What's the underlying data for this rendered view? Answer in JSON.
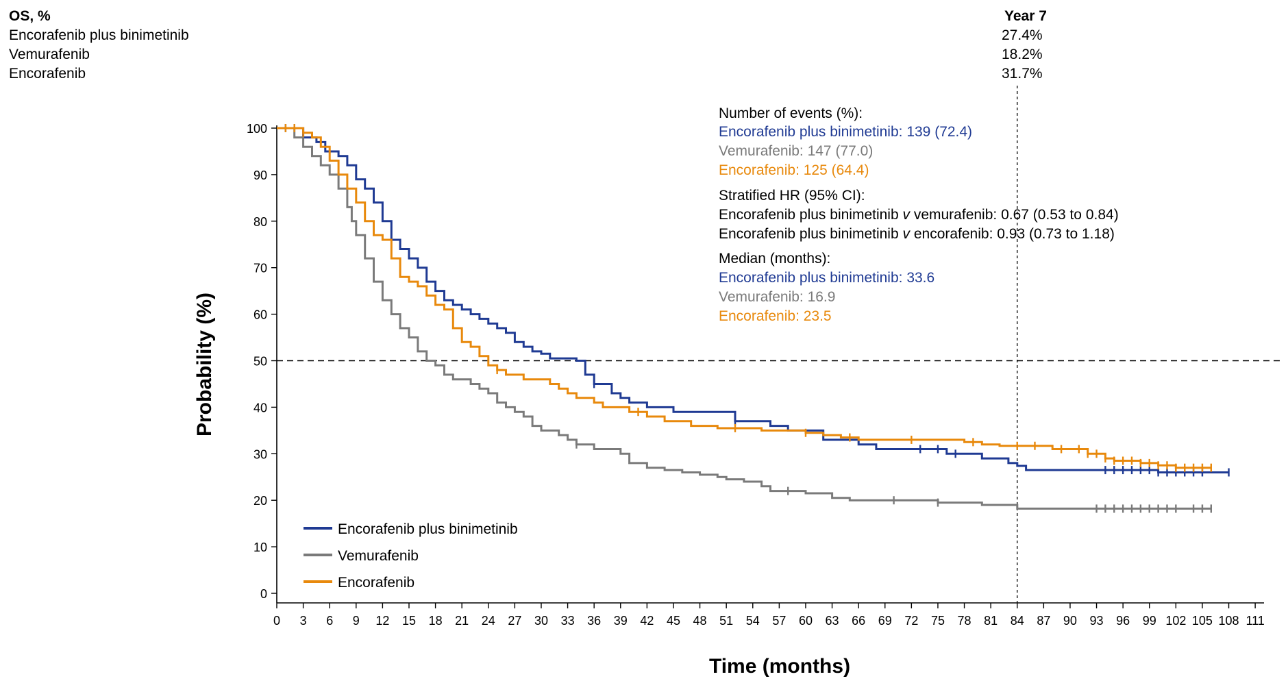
{
  "table": {
    "header_left": "OS, %",
    "header_right": "Year 7",
    "rows": [
      {
        "label": "Encorafenib plus binimetinib",
        "value": "27.4%"
      },
      {
        "label": "Vemurafenib",
        "value": "18.2%"
      },
      {
        "label": "Encorafenib",
        "value": "31.7%"
      }
    ]
  },
  "annotations": {
    "events_title": "Number of events (%):",
    "events": [
      {
        "text": "Encorafenib plus binimetinib: 139 (72.4)",
        "color": "#1f3a93"
      },
      {
        "text": "Vemurafenib: 147 (77.0)",
        "color": "#7a7a7a"
      },
      {
        "text": "Encorafenib: 125 (64.4)",
        "color": "#e8890c"
      }
    ],
    "hr_title": "Stratified HR (95% CI):",
    "hr": [
      {
        "pre": "Encorafenib plus binimetinib ",
        "v": "v",
        "post": " vemurafenib: 0.67 (0.53 to 0.84)"
      },
      {
        "pre": "Encorafenib plus binimetinib ",
        "v": "v",
        "post": " encorafenib: 0.93 (0.73 to 1.18)"
      }
    ],
    "median_title": "Median (months):",
    "medians": [
      {
        "text": "Encorafenib plus binimetinib: 33.6",
        "color": "#1f3a93"
      },
      {
        "text": "Vemurafenib: 16.9",
        "color": "#7a7a7a"
      },
      {
        "text": "Encorafenib: 23.5",
        "color": "#e8890c"
      }
    ]
  },
  "chart_data": {
    "type": "line",
    "subtype": "kaplan-meier step",
    "xlabel": "Time (months)",
    "ylabel": "Probability (%)",
    "xlim": [
      0,
      112
    ],
    "ylim": [
      0,
      100
    ],
    "xticks": [
      0,
      3,
      6,
      9,
      12,
      15,
      18,
      21,
      24,
      27,
      30,
      33,
      36,
      39,
      42,
      45,
      48,
      51,
      54,
      57,
      60,
      63,
      66,
      69,
      72,
      75,
      78,
      81,
      84,
      87,
      90,
      93,
      96,
      99,
      102,
      105,
      108,
      111
    ],
    "yticks": [
      0,
      10,
      20,
      30,
      40,
      50,
      60,
      70,
      80,
      90,
      100
    ],
    "reference_lines": {
      "horizontal_y": 50,
      "vertical_x": 84
    },
    "legend_position": "bottom-left",
    "series": [
      {
        "name": "Encorafenib plus binimetinib",
        "color": "#1f3a93",
        "points": [
          [
            0,
            100
          ],
          [
            3,
            98
          ],
          [
            4.5,
            97
          ],
          [
            5.5,
            95
          ],
          [
            7,
            94
          ],
          [
            8,
            92
          ],
          [
            9,
            89
          ],
          [
            10,
            87
          ],
          [
            11,
            84
          ],
          [
            12,
            80
          ],
          [
            13,
            76
          ],
          [
            14,
            74
          ],
          [
            15,
            72
          ],
          [
            16,
            70
          ],
          [
            17,
            67
          ],
          [
            18,
            65
          ],
          [
            19,
            63
          ],
          [
            20,
            62
          ],
          [
            21,
            61
          ],
          [
            22,
            60
          ],
          [
            23,
            59
          ],
          [
            24,
            58
          ],
          [
            25,
            57
          ],
          [
            26,
            56
          ],
          [
            27,
            54
          ],
          [
            28,
            53
          ],
          [
            29,
            52
          ],
          [
            30,
            51.5
          ],
          [
            31,
            50.5
          ],
          [
            34,
            50
          ],
          [
            35,
            47
          ],
          [
            36,
            45
          ],
          [
            38,
            43
          ],
          [
            39,
            42
          ],
          [
            40,
            41
          ],
          [
            42,
            40
          ],
          [
            45,
            39
          ],
          [
            48,
            39
          ],
          [
            52,
            37
          ],
          [
            56,
            36
          ],
          [
            58,
            35
          ],
          [
            62,
            33
          ],
          [
            66,
            32
          ],
          [
            68,
            31
          ],
          [
            74,
            31
          ],
          [
            76,
            30
          ],
          [
            80,
            29
          ],
          [
            83,
            28
          ],
          [
            84,
            27.4
          ],
          [
            85,
            26.5
          ],
          [
            100,
            26
          ],
          [
            108,
            26
          ]
        ],
        "censor_x": [
          1,
          2,
          36,
          52,
          73,
          75,
          77,
          94,
          95,
          96,
          97,
          98,
          99,
          100,
          101,
          102,
          103,
          104,
          105,
          108
        ]
      },
      {
        "name": "Vemurafenib",
        "color": "#7a7a7a",
        "points": [
          [
            0,
            100
          ],
          [
            2,
            98
          ],
          [
            3,
            96
          ],
          [
            4,
            94
          ],
          [
            5,
            92
          ],
          [
            6,
            90
          ],
          [
            7,
            87
          ],
          [
            8,
            83
          ],
          [
            8.5,
            80
          ],
          [
            9,
            77
          ],
          [
            10,
            72
          ],
          [
            11,
            67
          ],
          [
            12,
            63
          ],
          [
            13,
            60
          ],
          [
            14,
            57
          ],
          [
            15,
            55
          ],
          [
            16,
            52
          ],
          [
            17,
            50
          ],
          [
            18,
            49
          ],
          [
            19,
            47
          ],
          [
            20,
            46
          ],
          [
            22,
            45
          ],
          [
            23,
            44
          ],
          [
            24,
            43
          ],
          [
            25,
            41
          ],
          [
            26,
            40
          ],
          [
            27,
            39
          ],
          [
            28,
            38
          ],
          [
            29,
            36
          ],
          [
            30,
            35
          ],
          [
            32,
            34
          ],
          [
            33,
            33
          ],
          [
            34,
            32
          ],
          [
            36,
            31
          ],
          [
            39,
            30
          ],
          [
            40,
            28
          ],
          [
            42,
            27
          ],
          [
            44,
            26.5
          ],
          [
            46,
            26
          ],
          [
            48,
            25.5
          ],
          [
            50,
            25
          ],
          [
            51,
            24.5
          ],
          [
            53,
            24
          ],
          [
            55,
            23
          ],
          [
            56,
            22
          ],
          [
            60,
            21.5
          ],
          [
            63,
            20.5
          ],
          [
            65,
            20
          ],
          [
            70,
            20
          ],
          [
            75,
            19.5
          ],
          [
            80,
            19
          ],
          [
            84,
            18.2
          ],
          [
            106,
            18.2
          ]
        ],
        "censor_x": [
          34,
          58,
          70,
          75,
          93,
          94,
          95,
          96,
          97,
          98,
          99,
          100,
          101,
          102,
          104,
          105,
          106
        ]
      },
      {
        "name": "Encorafenib",
        "color": "#e8890c",
        "points": [
          [
            0,
            100
          ],
          [
            3,
            99
          ],
          [
            4,
            98
          ],
          [
            5,
            96
          ],
          [
            6,
            93
          ],
          [
            7,
            90
          ],
          [
            8,
            87
          ],
          [
            9,
            84
          ],
          [
            10,
            80
          ],
          [
            11,
            77
          ],
          [
            12,
            76
          ],
          [
            13,
            72
          ],
          [
            14,
            68
          ],
          [
            15,
            67
          ],
          [
            16,
            66
          ],
          [
            17,
            64
          ],
          [
            18,
            62
          ],
          [
            19,
            61
          ],
          [
            20,
            57
          ],
          [
            21,
            54
          ],
          [
            22,
            53
          ],
          [
            23,
            51
          ],
          [
            24,
            49
          ],
          [
            25,
            48
          ],
          [
            26,
            47
          ],
          [
            28,
            46
          ],
          [
            31,
            45
          ],
          [
            32,
            44
          ],
          [
            33,
            43
          ],
          [
            34,
            42
          ],
          [
            36,
            41
          ],
          [
            37,
            40
          ],
          [
            40,
            39
          ],
          [
            42,
            38
          ],
          [
            44,
            37
          ],
          [
            47,
            36
          ],
          [
            50,
            35.5
          ],
          [
            55,
            35
          ],
          [
            60,
            34.5
          ],
          [
            62,
            34
          ],
          [
            64,
            33.5
          ],
          [
            66,
            33
          ],
          [
            70,
            33
          ],
          [
            75,
            33
          ],
          [
            78,
            32.5
          ],
          [
            80,
            32
          ],
          [
            82,
            31.7
          ],
          [
            85,
            31.7
          ],
          [
            88,
            31
          ],
          [
            92,
            30
          ],
          [
            94,
            29
          ],
          [
            95,
            28.5
          ],
          [
            98,
            28
          ],
          [
            100,
            27.5
          ],
          [
            102,
            27
          ],
          [
            106,
            27
          ]
        ],
        "censor_x": [
          1,
          2,
          3,
          25,
          41,
          52,
          60,
          65,
          72,
          79,
          84,
          86,
          89,
          91,
          92,
          93,
          94,
          95,
          96,
          97,
          98,
          99,
          100,
          101,
          102,
          103,
          104,
          105,
          106
        ]
      }
    ]
  }
}
